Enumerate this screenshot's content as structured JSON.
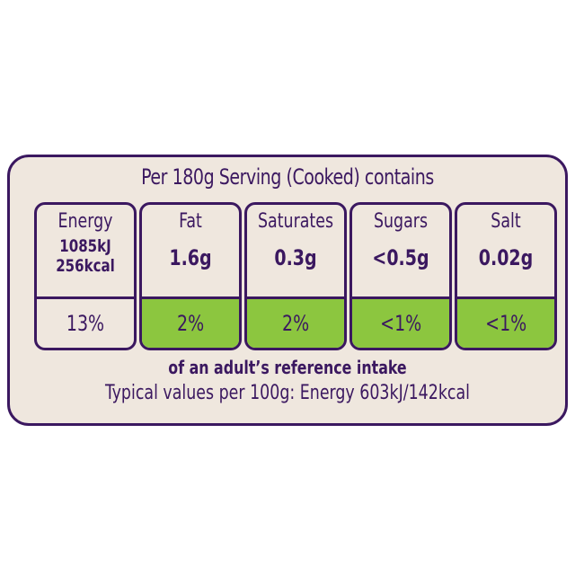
{
  "header": "Per 180g Serving (Cooked) contains",
  "colors": {
    "text": "#3b1860",
    "background": "#efe7de",
    "low": "#8cc63f"
  },
  "nutrients": [
    {
      "name": "Energy",
      "value": "1085kJ",
      "value2": "256kcal",
      "ri": "13%",
      "level": "none"
    },
    {
      "name": "Fat",
      "value": "1.6g",
      "ri": "2%",
      "level": "low"
    },
    {
      "name": "Saturates",
      "value": "0.3g",
      "ri": "2%",
      "level": "low"
    },
    {
      "name": "Sugars",
      "value": "<0.5g",
      "ri": "<1%",
      "level": "low"
    },
    {
      "name": "Salt",
      "value": "0.02g",
      "ri": "<1%",
      "level": "low"
    }
  ],
  "footer": {
    "ri_note": "of an adult’s reference intake",
    "typical": "Typical values per 100g: Energy 603kJ/142kcal"
  }
}
